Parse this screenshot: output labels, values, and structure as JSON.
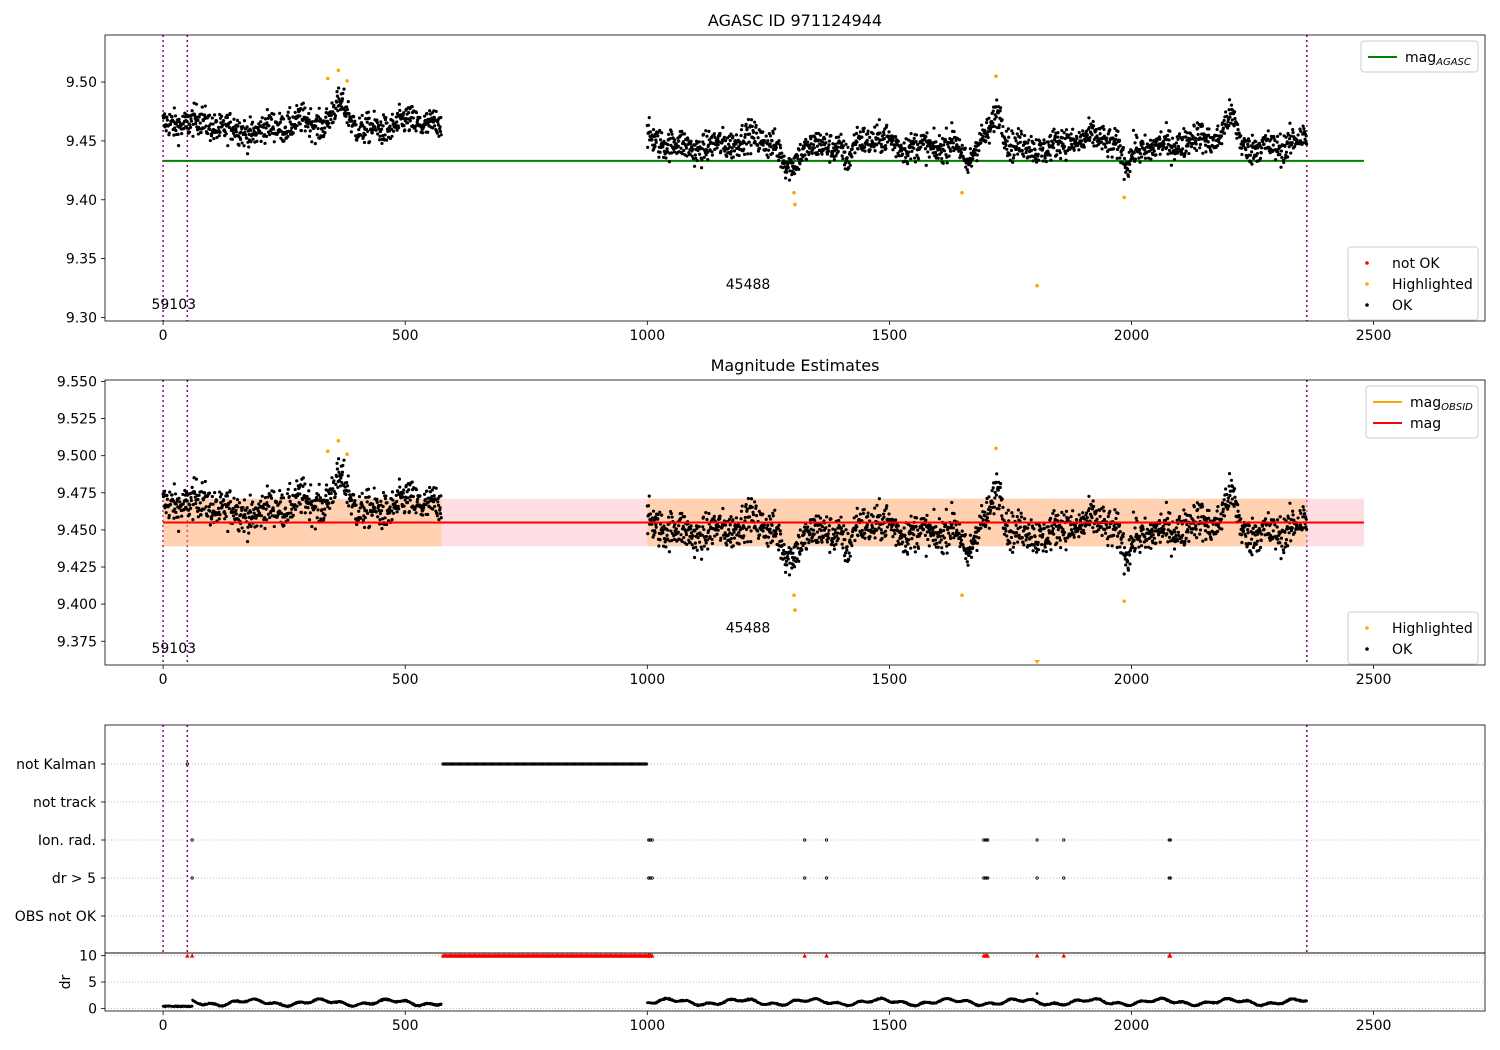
{
  "chart_data": [
    {
      "type": "scatter",
      "title": "AGASC ID 971124944",
      "xlim": [
        -120,
        2730
      ],
      "ylim": [
        9.297,
        9.54
      ],
      "xticks": [
        0,
        500,
        1000,
        1500,
        2000,
        2500
      ],
      "yticks": [
        9.3,
        9.35,
        9.4,
        9.45,
        9.5
      ],
      "ytick_labels": [
        "9.30",
        "9.35",
        "9.40",
        "9.45",
        "9.50"
      ],
      "grid": false,
      "vlines": [
        0,
        50,
        2362
      ],
      "obs_labels": [
        {
          "text": "59103",
          "x": 22,
          "y": 9.307
        },
        {
          "text": "45488",
          "x": 1208,
          "y": 9.324
        }
      ],
      "mag_agasc": {
        "value": 9.433,
        "x_range": [
          0,
          2480
        ]
      },
      "segments": [
        {
          "x_range": [
            0,
            575
          ],
          "base": 9.462
        },
        {
          "x_range": [
            1000,
            2362
          ],
          "base": 9.448
        }
      ],
      "highlighted": [
        {
          "x": 340,
          "y": 9.503
        },
        {
          "x": 362,
          "y": 9.51
        },
        {
          "x": 380,
          "y": 9.501
        },
        {
          "x": 1303,
          "y": 9.406
        },
        {
          "x": 1305,
          "y": 9.396
        },
        {
          "x": 1650,
          "y": 9.406
        },
        {
          "x": 1720,
          "y": 9.505
        },
        {
          "x": 1805,
          "y": 9.327
        },
        {
          "x": 1985,
          "y": 9.402
        }
      ],
      "legend_top": {
        "placement": "upper-right",
        "entries": [
          {
            "label": "mag",
            "sub": "AGASC",
            "color": "#008000"
          }
        ]
      },
      "legend_bottom": {
        "placement": "lower-right",
        "entries": [
          {
            "label": "not OK",
            "color": "#ff0000"
          },
          {
            "label": "Highlighted",
            "color": "#ffa500"
          },
          {
            "label": "OK",
            "color": "#000000"
          }
        ]
      }
    },
    {
      "type": "scatter",
      "title": "Magnitude Estimates",
      "xlim": [
        -120,
        2730
      ],
      "ylim": [
        9.359,
        9.551
      ],
      "xticks": [
        0,
        500,
        1000,
        1500,
        2000,
        2500
      ],
      "yticks": [
        9.375,
        9.4,
        9.425,
        9.45,
        9.475,
        9.5,
        9.525,
        9.55
      ],
      "ytick_labels": [
        "9.375",
        "9.400",
        "9.425",
        "9.450",
        "9.475",
        "9.500",
        "9.525",
        "9.550"
      ],
      "grid": false,
      "vlines": [
        0,
        50,
        2362
      ],
      "obs_labels": [
        {
          "text": "59103",
          "x": 22,
          "y": 9.367
        },
        {
          "text": "45488",
          "x": 1208,
          "y": 9.381
        }
      ],
      "mag": {
        "value": 9.455,
        "band": [
          9.439,
          9.471
        ],
        "x_range": [
          0,
          2480
        ]
      },
      "mag_obsid": [
        {
          "value": 9.455,
          "band": [
            9.439,
            9.471
          ],
          "x_range": [
            0,
            575
          ]
        },
        {
          "value": 9.455,
          "band": [
            9.439,
            9.471
          ],
          "x_range": [
            1000,
            2362
          ]
        }
      ],
      "highlighted": [
        {
          "x": 340,
          "y": 9.503
        },
        {
          "x": 362,
          "y": 9.51
        },
        {
          "x": 380,
          "y": 9.501
        },
        {
          "x": 1303,
          "y": 9.406
        },
        {
          "x": 1305,
          "y": 9.396
        },
        {
          "x": 1650,
          "y": 9.406
        },
        {
          "x": 1720,
          "y": 9.505
        },
        {
          "x": 1985,
          "y": 9.402
        }
      ],
      "offscale": [
        {
          "x": 1805,
          "y": 9.327
        }
      ],
      "legend_top": {
        "placement": "upper-right",
        "entries": [
          {
            "label": "mag",
            "sub": "OBSID",
            "color": "#ffa500"
          },
          {
            "label": "mag",
            "color": "#ff0000"
          }
        ]
      },
      "legend_bottom": {
        "placement": "lower-right",
        "entries": [
          {
            "label": "Highlighted",
            "color": "#ffa500"
          },
          {
            "label": "OK",
            "color": "#000000"
          }
        ]
      }
    },
    {
      "type": "scatter",
      "title": "",
      "xlim": [
        -120,
        2730
      ],
      "xticks": [
        0,
        500,
        1000,
        1500,
        2000,
        2500
      ],
      "vlines": [
        0,
        50,
        2362
      ],
      "flags": [
        {
          "label": "not Kalman",
          "points": [
            50
          ],
          "ranges": [
            [
              578,
              1000
            ]
          ]
        },
        {
          "label": "not track",
          "points": [],
          "ranges": []
        },
        {
          "label": "Ion. rad.",
          "points": [
            60,
            1003,
            1006,
            1010,
            1325,
            1370,
            1695,
            1698,
            1700,
            1703,
            1805,
            1860,
            2078,
            2080
          ]
        },
        {
          "label": "dr > 5",
          "points": [
            60,
            1003,
            1006,
            1010,
            1325,
            1370,
            1695,
            1698,
            1700,
            1703,
            1805,
            1860,
            2078,
            2080
          ]
        },
        {
          "label": "OBS not OK",
          "points": [],
          "ranges": []
        }
      ]
    },
    {
      "type": "scatter",
      "title": "",
      "ylabel": "dr",
      "xlim": [
        -120,
        2730
      ],
      "ylim": [
        -0.5,
        10.5
      ],
      "yticks": [
        0,
        5,
        10
      ],
      "ytick_labels": [
        "0",
        "5",
        "10"
      ],
      "xticks": [
        0,
        500,
        1000,
        1500,
        2000,
        2500
      ],
      "xtick_labels": [
        "0",
        "500",
        "1000",
        "1500",
        "2000",
        "2500"
      ],
      "clipped_markers": {
        "y": 10,
        "points": [
          50,
          60,
          1003,
          1006,
          1010,
          1325,
          1370,
          1695,
          1698,
          1700,
          1703,
          1805,
          1860,
          2078,
          2080
        ],
        "ranges": [
          [
            578,
            1012
          ]
        ],
        "color": "#ff0000"
      },
      "segments": [
        {
          "x_range": [
            0,
            575
          ],
          "mean": 1.1
        },
        {
          "x_range": [
            1000,
            2362
          ],
          "mean": 1.2
        }
      ],
      "spike": {
        "x": 1805,
        "y": 2.8
      }
    }
  ]
}
